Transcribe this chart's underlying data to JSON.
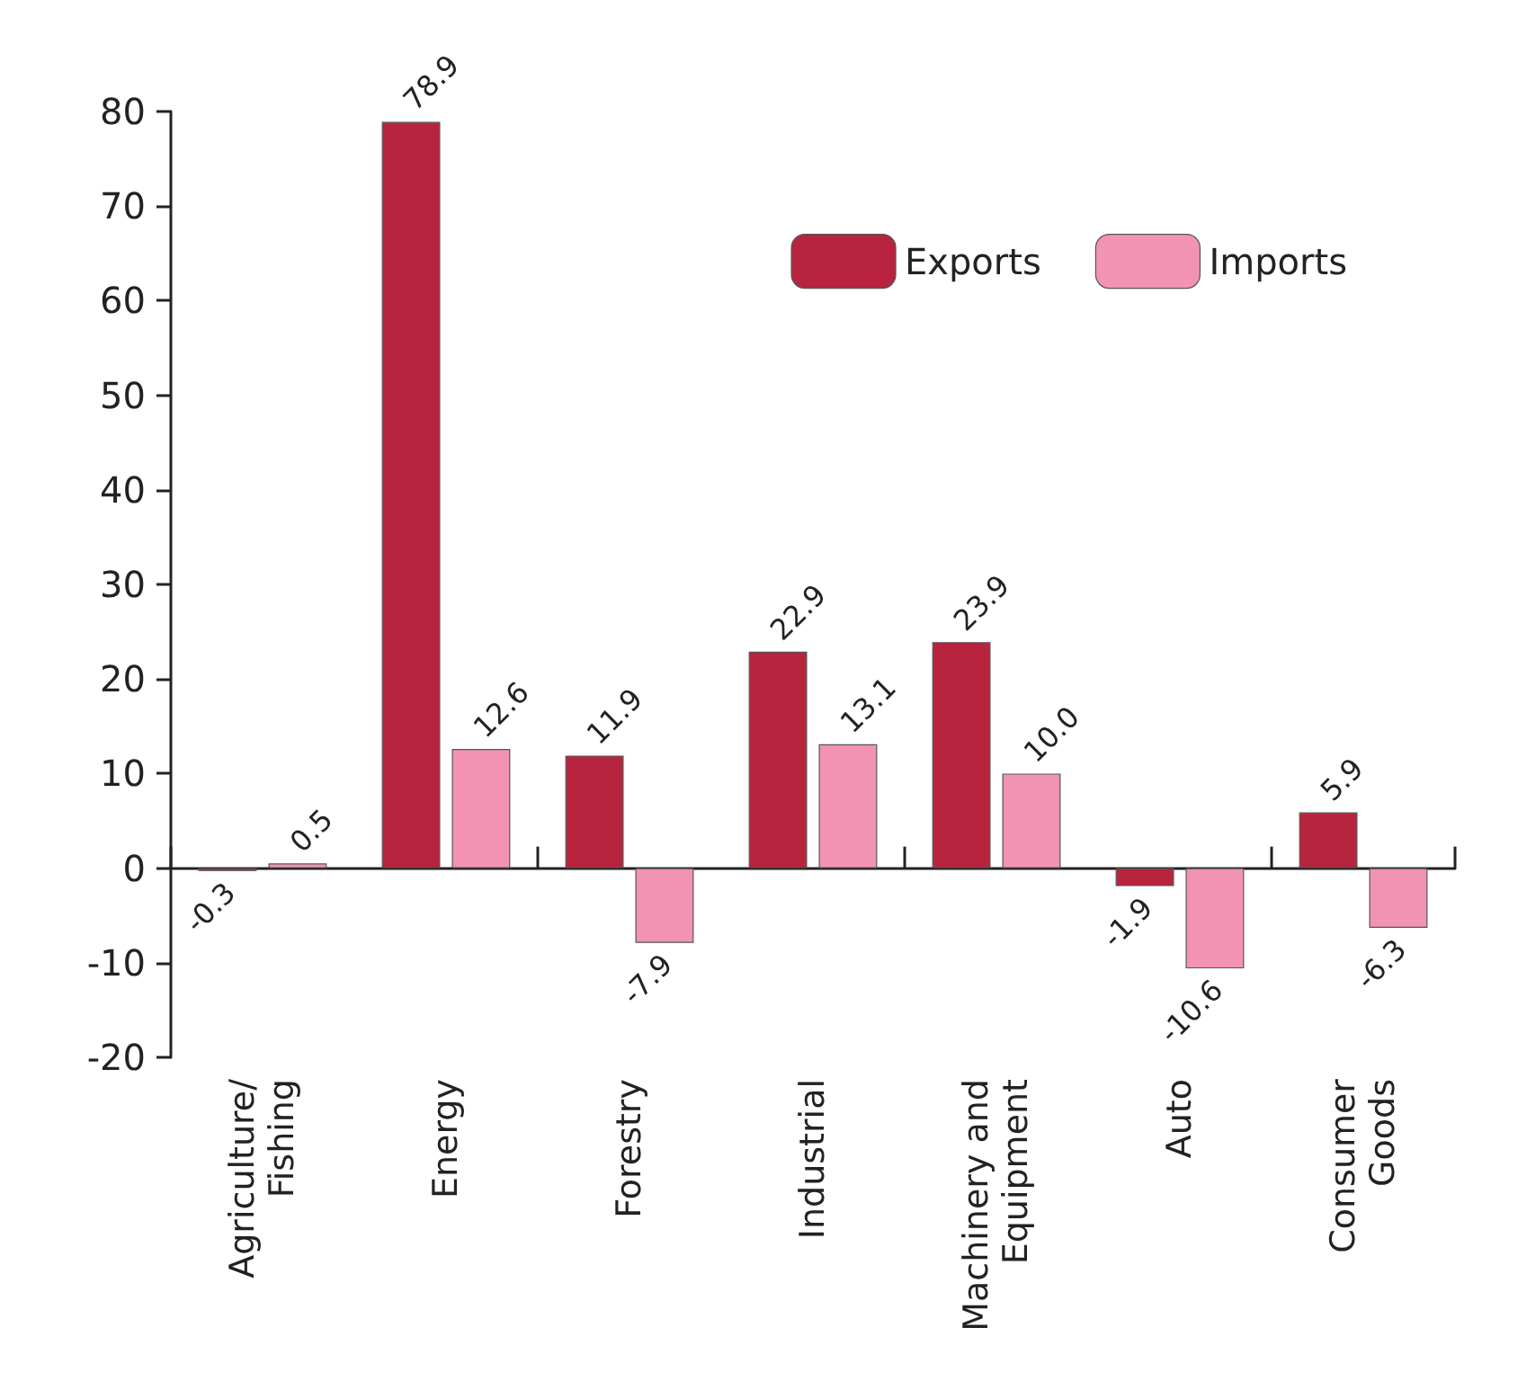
{
  "chart_data": {
    "type": "bar",
    "categories": [
      "Agriculture/\nFishing",
      "Energy",
      "Forestry",
      "Industrial",
      "Machinery and\nEquipment",
      "Auto",
      "Consumer\nGoods"
    ],
    "series": [
      {
        "name": "Exports",
        "color": "#b8243e",
        "values": [
          -0.3,
          78.9,
          11.9,
          22.9,
          23.9,
          -1.9,
          5.9
        ],
        "value_labels": [
          "-0.3",
          "78.9",
          "11.9",
          "22.9",
          "23.9",
          "-1.9",
          "5.9"
        ]
      },
      {
        "name": "Imports",
        "color": "#f293b4",
        "values": [
          0.5,
          12.6,
          -7.9,
          13.1,
          10.0,
          -10.6,
          -6.3
        ],
        "value_labels": [
          "0.5",
          "12.6",
          "-7.9",
          "13.1",
          "10.0",
          "-10.6",
          "-6.3"
        ]
      }
    ],
    "ylim": [
      -20,
      80
    ],
    "yticks": [
      -20,
      -10,
      0,
      10,
      20,
      30,
      40,
      50,
      60,
      70,
      80
    ],
    "legend": "top right"
  }
}
